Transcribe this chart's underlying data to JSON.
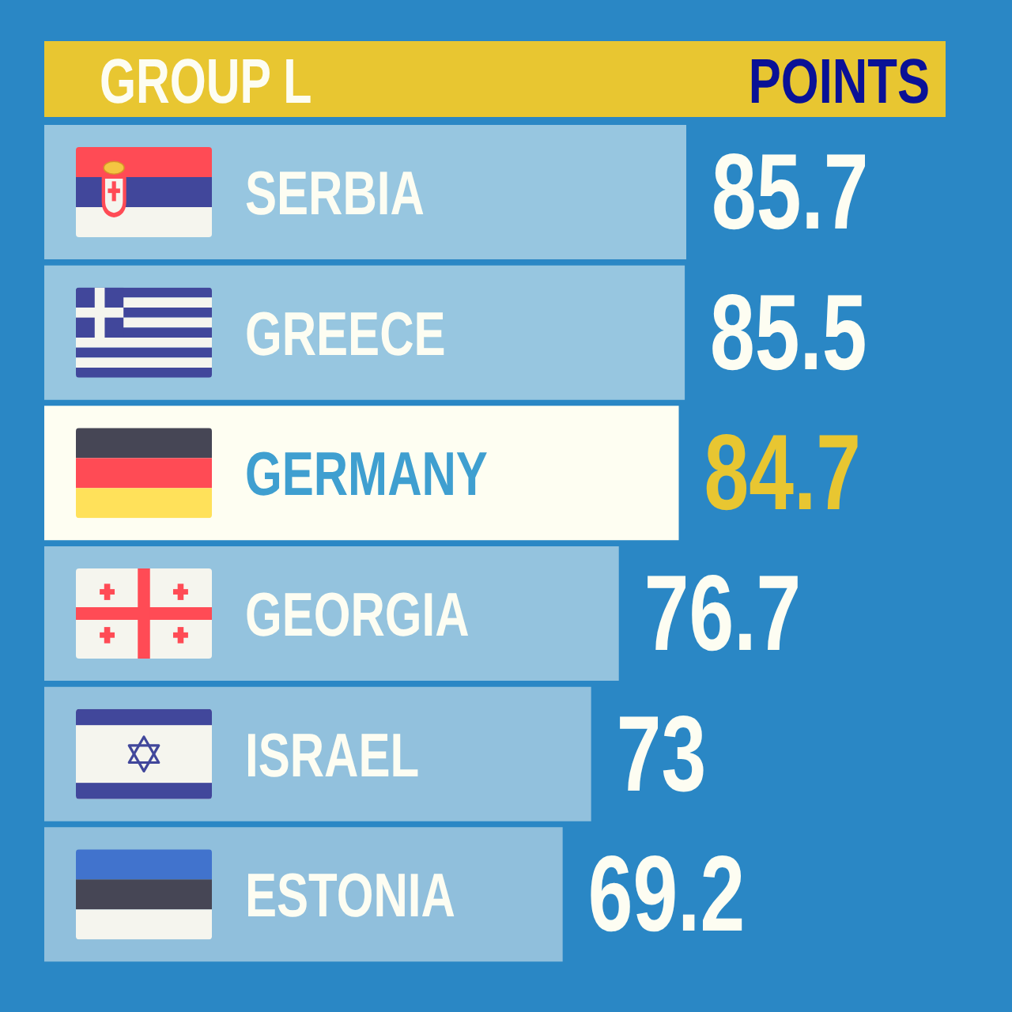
{
  "chart_data": {
    "type": "bar",
    "orientation": "horizontal",
    "title": "GROUP L",
    "xlabel": "POINTS",
    "categories": [
      "SERBIA",
      "GREECE",
      "GERMANY",
      "GEORGIA",
      "ISRAEL",
      "ESTONIA"
    ],
    "values": [
      85.7,
      85.5,
      84.7,
      76.7,
      73,
      69.2
    ],
    "colors": [
      "#97c6e0",
      "#97c6e0",
      "#fefef2",
      "#94c3de",
      "#92c1dd",
      "#90bfdc"
    ],
    "data_labels": true
  }
}
